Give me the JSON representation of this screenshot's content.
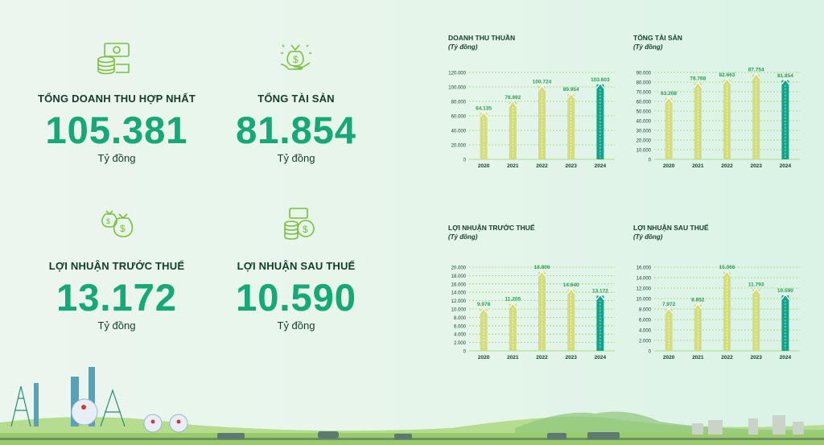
{
  "kpis": [
    {
      "id": "revenue",
      "title": "TỔNG DOANH THU HỢP NHẤT",
      "value": "105.381",
      "unit": "Tỷ đồng",
      "icon": "coins-icon"
    },
    {
      "id": "assets",
      "title": "TỔNG TÀI SẢN",
      "value": "81.854",
      "unit": "Tỷ đồng",
      "icon": "money-bag-hand-icon"
    },
    {
      "id": "pbt",
      "title": "LỢI NHUẬN TRƯỚC THUẾ",
      "value": "13.172",
      "unit": "Tỷ đồng",
      "icon": "money-bags-icon"
    },
    {
      "id": "pat",
      "title": "LỢI NHUẬN SAU THUẾ",
      "value": "10.590",
      "unit": "Tỷ đồng",
      "icon": "coin-stack-icon"
    }
  ],
  "colors": {
    "kpi_green": "#16a877",
    "bar": "#d4dc7e",
    "bar_highlight": "#13a28a",
    "axis_text": "#143d28",
    "grid": "#9ed36b",
    "label": "#2e9a52"
  },
  "chart_data": [
    {
      "type": "bar",
      "title": "DOANH THU THUẦN",
      "subtitle": "(Tỷ đồng)",
      "categories": [
        "2020",
        "2021",
        "2022",
        "2023",
        "2024"
      ],
      "values": [
        64135,
        78992,
        100724,
        89954,
        103603
      ],
      "value_labels": [
        "64.135",
        "78.992",
        "100.724",
        "89.954",
        "103.603"
      ],
      "yticks": [
        "0",
        "20.000",
        "40.000",
        "60.000",
        "80.000",
        "100.000",
        "120.000"
      ],
      "ylim": [
        0,
        120000
      ],
      "highlight": "2024",
      "grid": true
    },
    {
      "type": "bar",
      "title": "TỔNG TÀI SẢN",
      "subtitle": "(Tỷ đồng)",
      "categories": [
        "2020",
        "2021",
        "2022",
        "2023",
        "2024"
      ],
      "values": [
        63208,
        78768,
        82663,
        87754,
        81854
      ],
      "value_labels": [
        "63.208",
        "78.768",
        "82.663",
        "87.754",
        "81.854"
      ],
      "yticks": [
        "0",
        "10.000",
        "20.000",
        "30.000",
        "40.000",
        "50.000",
        "60.000",
        "70.000",
        "80.000",
        "90.000"
      ],
      "ylim": [
        0,
        90000
      ],
      "highlight": "2024",
      "grid": true
    },
    {
      "type": "bar",
      "title": "LỢI NHUẬN TRƯỚC THUẾ",
      "subtitle": "(Tỷ đồng)",
      "categories": [
        "2020",
        "2021",
        "2022",
        "2023",
        "2024"
      ],
      "values": [
        9978,
        11205,
        18806,
        14640,
        13172
      ],
      "value_labels": [
        "9.978",
        "11.205",
        "18.806",
        "14.640",
        "13.172"
      ],
      "yticks": [
        "0",
        "2.000",
        "4.000",
        "6.000",
        "8.000",
        "10.000",
        "12.000",
        "14.000",
        "16.000",
        "18.000",
        "20.000"
      ],
      "ylim": [
        0,
        20000
      ],
      "highlight": "2024",
      "grid": true
    },
    {
      "type": "bar",
      "title": "LỢI NHUẬN SAU THUẾ",
      "subtitle": "(Tỷ đồng)",
      "categories": [
        "2020",
        "2021",
        "2022",
        "2023",
        "2024"
      ],
      "values": [
        7972,
        8852,
        15066,
        11793,
        10590
      ],
      "value_labels": [
        "7.972",
        "8.852",
        "15.066",
        "11.793",
        "10.590"
      ],
      "yticks": [
        "0",
        "2.000",
        "4.000",
        "6.000",
        "8.000",
        "10.000",
        "12.000",
        "14.000",
        "16.000"
      ],
      "ylim": [
        0,
        16000
      ],
      "highlight": "2024",
      "grid": true
    }
  ]
}
